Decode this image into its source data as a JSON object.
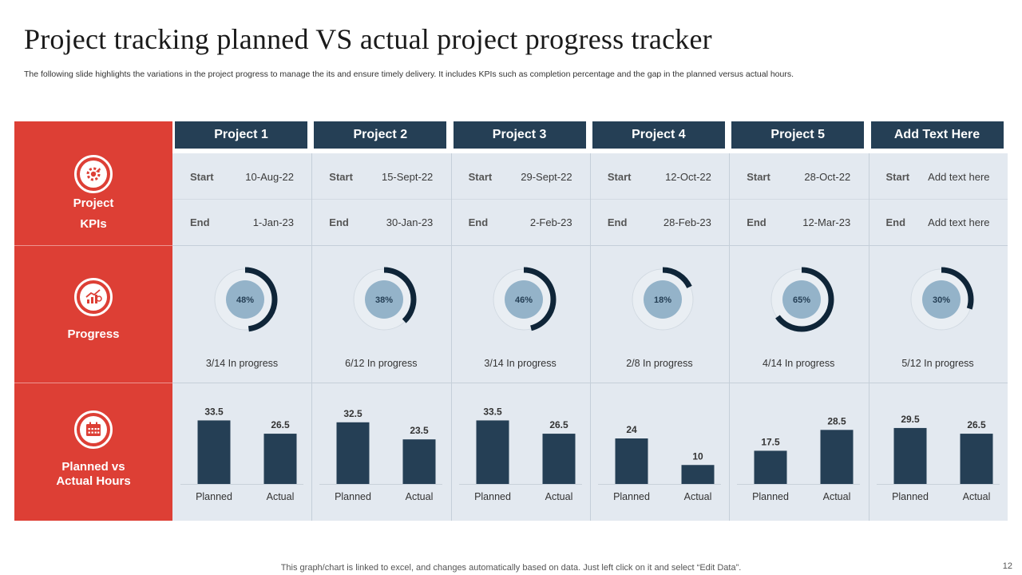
{
  "title": "Project tracking planned VS actual project progress tracker",
  "subtitle": "The following slide highlights the variations in the project progress to manage the its and ensure timely delivery. It includes KPIs such as completion percentage and the gap in the planned versus actual hours.",
  "sidebar": {
    "kpis_line1": "Project",
    "kpis_line2": "KPIs",
    "progress": "Progress",
    "hours_line1": "Planned vs",
    "hours_line2": "Actual Hours",
    "icons": [
      "gear-rocket-icon",
      "growth-chart-icon",
      "calendar-icon"
    ]
  },
  "labels": {
    "start": "Start",
    "end": "End"
  },
  "chart_data": {
    "type": "bar",
    "title": "Planned vs Actual Hours",
    "categories": [
      "Planned",
      "Actual"
    ],
    "ylim": [
      0,
      40
    ],
    "projects": [
      {
        "name": "Project 1",
        "start": "10-Aug-22",
        "end": "1-Jan-23",
        "progress": 48,
        "progress_label": "48%",
        "status": "3/14 In progress",
        "planned": 33.5,
        "actual": 26.5,
        "planned_label": "33.5",
        "actual_label": "26.5"
      },
      {
        "name": "Project 2",
        "start": "15-Sept-22",
        "end": "30-Jan-23",
        "progress": 38,
        "progress_label": "38%",
        "status": "6/12 In progress",
        "planned": 32.5,
        "actual": 23.5,
        "planned_label": "32.5",
        "actual_label": "23.5"
      },
      {
        "name": "Project 3",
        "start": "29-Sept-22",
        "end": "2-Feb-23",
        "progress": 46,
        "progress_label": "46%",
        "status": "3/14 In progress",
        "planned": 33.5,
        "actual": 26.5,
        "planned_label": "33.5",
        "actual_label": "26.5"
      },
      {
        "name": "Project 4",
        "start": "12-Oct-22",
        "end": "28-Feb-23",
        "progress": 18,
        "progress_label": "18%",
        "status": "2/8 In progress",
        "planned": 24,
        "actual": 10,
        "planned_label": "24",
        "actual_label": "10"
      },
      {
        "name": "Project 5",
        "start": "28-Oct-22",
        "end": "12-Mar-23",
        "progress": 65,
        "progress_label": "65%",
        "status": "4/14 In progress",
        "planned": 17.5,
        "actual": 28.5,
        "planned_label": "17.5",
        "actual_label": "28.5"
      },
      {
        "name": "Add Text Here",
        "start": "Add text here",
        "end": "Add text here",
        "progress": 30,
        "progress_label": "30%",
        "status": "5/12 In progress",
        "planned": 29.5,
        "actual": 26.5,
        "planned_label": "29.5",
        "actual_label": "26.5"
      }
    ]
  },
  "colors": {
    "accent_red": "#dd3f35",
    "header_navy": "#253f55",
    "bar": "#253f55",
    "donut_fill": "#0f2538",
    "donut_center": "#94b3c9",
    "panel_bg": "#e3e9f0"
  },
  "footer": {
    "note": "This graph/chart is linked to excel, and changes automatically based on data. Just left click on it and select “Edit Data”.",
    "page": "12"
  }
}
